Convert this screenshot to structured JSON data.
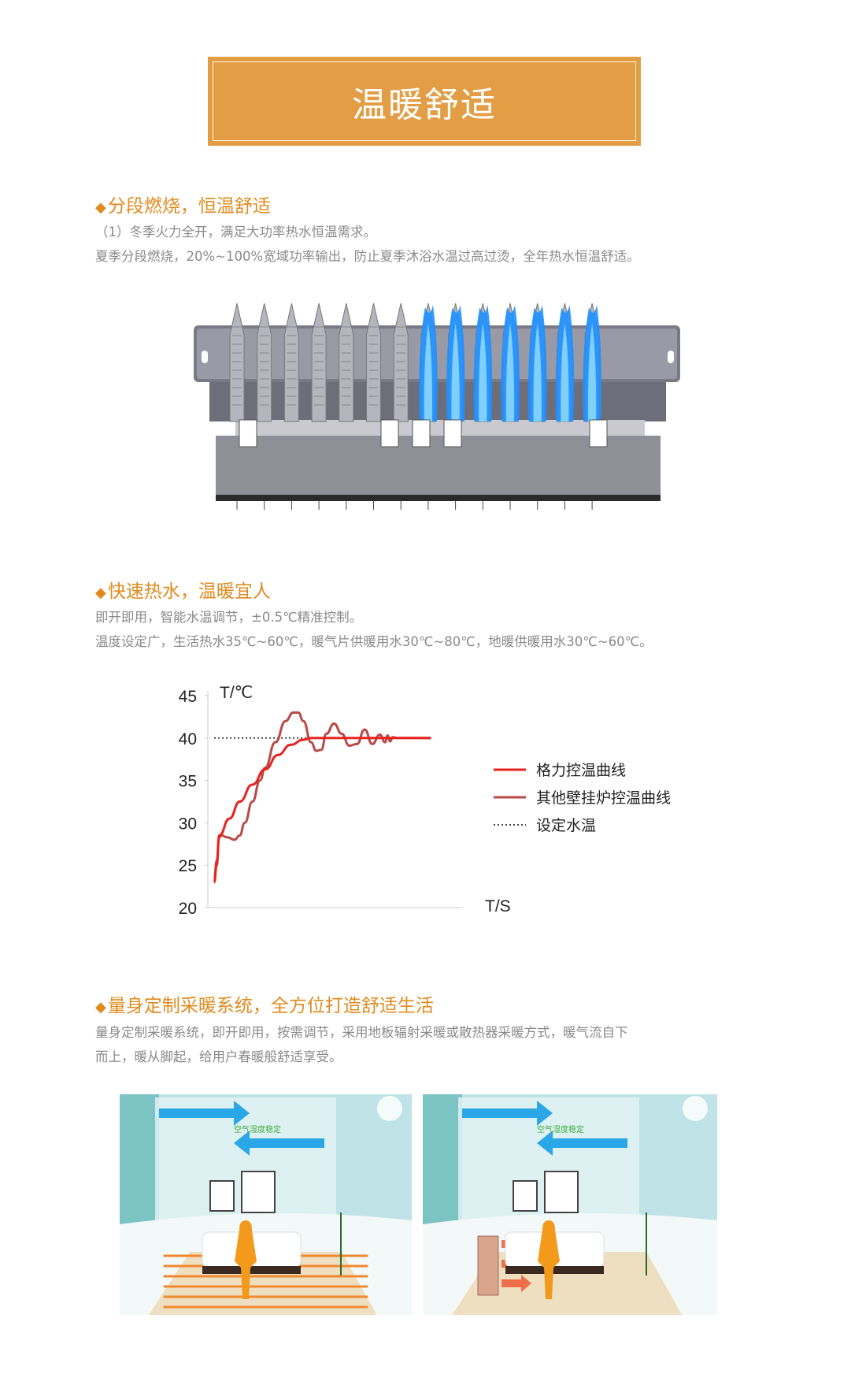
{
  "banner": {
    "title": "温暖舒适"
  },
  "sections": [
    {
      "heading": "分段燃烧，恒温舒适",
      "lines": [
        "（1）冬季火力全开，满足大功率热水恒温需求。",
        "夏季分段燃烧，20%~100%宽域功率输出，防止夏季沐浴水温过高过烫，全年热水恒温舒适。"
      ]
    },
    {
      "heading": "快速热水，温暖宜人",
      "lines": [
        "即开即用，智能水温调节，±0.5℃精准控制。",
        "温度设定广，生活热水35℃~60℃，暖气片供暖用水30℃~80℃，地暖供暖用水30℃~60℃。"
      ]
    },
    {
      "heading": "量身定制采暖系统，全方位打造舒适生活",
      "lines": [
        "量身定制采暖系统，即开即用，按需调节，采用地板辐射采暖或散热器采暖方式，暖气流自下",
        "而上，暖从脚起，给用户春暖般舒适享受。"
      ]
    }
  ],
  "burner": {
    "tubes_total": 14,
    "tubes_lit": 7,
    "flame_color": "#1e90ff"
  },
  "rooms": [
    {
      "label": "空气湿度稳定",
      "type": "floor-heating"
    },
    {
      "label": "空气湿度稳定",
      "type": "radiator"
    }
  ],
  "chart_data": {
    "type": "line",
    "ylabel": "T/℃",
    "xlabel": "T/S",
    "ylim": [
      20,
      45
    ],
    "yticks": [
      "45",
      "40",
      "35",
      "30",
      "25",
      "20"
    ],
    "grid": false,
    "legend": "right",
    "series": [
      {
        "name": "格力控温曲线",
        "color": "#e8231f",
        "x": [
          0,
          1,
          2,
          6,
          10,
          15,
          20,
          25,
          30,
          35,
          38,
          42,
          50,
          60,
          70,
          80,
          85
        ],
        "y": [
          23,
          25,
          28.5,
          30.5,
          32.5,
          34.5,
          36.3,
          38,
          39.2,
          39.8,
          40,
          40,
          40,
          40,
          40,
          40,
          40
        ]
      },
      {
        "name": "其他壁挂炉控温曲线",
        "color": "#b94a48",
        "x": [
          0,
          1,
          2,
          3,
          5,
          8,
          10,
          12,
          15,
          18,
          20,
          24,
          28,
          31,
          33,
          35,
          38,
          40,
          42,
          44,
          47,
          50,
          53,
          56,
          59,
          62,
          65,
          67,
          68,
          69,
          70,
          72,
          75,
          85
        ],
        "y": [
          23,
          25.5,
          28.3,
          28.5,
          28.3,
          28,
          28.5,
          30,
          32.5,
          35,
          36.5,
          39.5,
          42,
          43,
          43,
          42,
          39.5,
          38.5,
          38.6,
          40.5,
          41.7,
          40.5,
          39.1,
          39.3,
          41,
          39.3,
          40.4,
          39.5,
          40.3,
          39.6,
          40.1,
          40,
          40,
          40
        ]
      },
      {
        "name": "设定水温",
        "color": "#444444",
        "style": "dotted",
        "x": [
          0,
          85
        ],
        "y": [
          40,
          40
        ]
      }
    ]
  }
}
